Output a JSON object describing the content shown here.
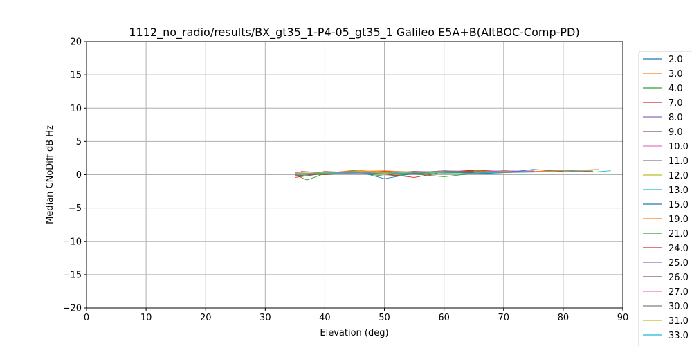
{
  "chart_data": {
    "type": "line",
    "title": "1112_no_radio/results/BX_gt35_1-P4-05_gt35_1 Galileo E5A+B(AltBOC-Comp-PD)",
    "xlabel": "Elevation (deg)",
    "ylabel": "Median CNoDiff dB Hz",
    "xlim": [
      0,
      90
    ],
    "ylim": [
      -20,
      20
    ],
    "xticks": [
      0,
      10,
      20,
      30,
      40,
      50,
      60,
      70,
      80,
      90
    ],
    "yticks": [
      -20,
      -15,
      -10,
      -5,
      0,
      5,
      10,
      15,
      20
    ],
    "x_tick_labels": [
      "0",
      "10",
      "20",
      "30",
      "40",
      "50",
      "60",
      "70",
      "80",
      "90"
    ],
    "y_tick_labels": [
      "−20",
      "−15",
      "−10",
      "−5",
      "0",
      "5",
      "10",
      "15",
      "20"
    ],
    "grid": true,
    "legend_position": "outside-right",
    "series": [
      {
        "name": "2.0",
        "color": "#1f77b4",
        "x": [
          35,
          40,
          45,
          50,
          55,
          60,
          65,
          70,
          75,
          80,
          85
        ],
        "y": [
          0.3,
          0.1,
          0.4,
          0.2,
          0.3,
          0.5,
          0.4,
          0.6,
          0.5,
          0.6,
          0.5
        ]
      },
      {
        "name": "3.0",
        "color": "#ff7f0e",
        "x": [
          35,
          40,
          45,
          50,
          55,
          60,
          65,
          70,
          75,
          80,
          85
        ],
        "y": [
          0.1,
          0.3,
          0.5,
          0.6,
          0.4,
          0.3,
          0.6,
          0.4,
          0.5,
          0.7,
          0.6
        ]
      },
      {
        "name": "4.0",
        "color": "#2ca02c",
        "x": [
          35,
          37,
          40,
          45,
          50,
          55,
          60,
          65,
          70
        ],
        "y": [
          0.0,
          -0.8,
          0.2,
          0.3,
          -0.2,
          0.1,
          -0.3,
          0.2,
          0.3
        ]
      },
      {
        "name": "7.0",
        "color": "#d62728",
        "x": [
          35,
          40,
          45,
          50,
          55,
          60,
          65,
          70
        ],
        "y": [
          -0.4,
          0.2,
          0.5,
          0.1,
          -0.4,
          0.4,
          0.7,
          0.5
        ]
      },
      {
        "name": "8.0",
        "color": "#9467bd",
        "x": [
          35,
          40,
          45,
          50,
          55,
          60,
          65,
          70,
          75
        ],
        "y": [
          0.2,
          0.3,
          0.1,
          0.4,
          0.2,
          0.6,
          0.5,
          0.4,
          0.6
        ]
      },
      {
        "name": "9.0",
        "color": "#8c564b",
        "x": [
          35,
          40,
          45,
          50,
          55,
          60,
          65
        ],
        "y": [
          0.1,
          0.0,
          0.3,
          0.5,
          0.2,
          0.4,
          0.6
        ]
      },
      {
        "name": "10.0",
        "color": "#e377c2",
        "x": [
          36,
          40,
          45,
          50,
          55,
          60,
          65,
          70,
          75,
          80
        ],
        "y": [
          0.2,
          0.4,
          0.2,
          0.3,
          0.5,
          0.3,
          0.4,
          0.6,
          0.5,
          0.4
        ]
      },
      {
        "name": "11.0",
        "color": "#7f7f7f",
        "x": [
          35,
          40,
          45,
          50,
          55,
          60,
          65,
          70
        ],
        "y": [
          -0.1,
          0.2,
          0.4,
          0.1,
          0.3,
          0.5,
          0.2,
          0.4
        ]
      },
      {
        "name": "12.0",
        "color": "#bcbd22",
        "x": [
          35,
          40,
          45,
          50,
          55,
          60,
          65,
          70,
          75
        ],
        "y": [
          0.0,
          0.1,
          0.6,
          0.3,
          0.5,
          0.2,
          0.3,
          0.5,
          0.4
        ]
      },
      {
        "name": "13.0",
        "color": "#17becf",
        "x": [
          38,
          40,
          45,
          50,
          55,
          60,
          65,
          70,
          75,
          80,
          85,
          88
        ],
        "y": [
          0.1,
          0.3,
          0.2,
          0.4,
          0.1,
          0.3,
          0.2,
          0.3,
          0.4,
          0.5,
          0.4,
          0.6
        ]
      },
      {
        "name": "15.0",
        "color": "#1f77b4",
        "x": [
          35,
          40,
          45,
          50,
          55,
          60,
          65,
          70,
          75,
          80
        ],
        "y": [
          -0.2,
          0.2,
          0.6,
          -0.6,
          0.2,
          0.5,
          0.1,
          0.3,
          0.8,
          0.5
        ]
      },
      {
        "name": "19.0",
        "color": "#ff7f0e",
        "x": [
          35,
          40,
          45,
          50,
          55,
          60,
          65,
          70,
          75,
          80,
          86
        ],
        "y": [
          0.3,
          0.2,
          0.7,
          0.4,
          0.3,
          0.6,
          0.4,
          0.3,
          0.5,
          0.6,
          0.8
        ]
      },
      {
        "name": "21.0",
        "color": "#2ca02c",
        "x": [
          35,
          40,
          45,
          50,
          55,
          60,
          65,
          70
        ],
        "y": [
          0.1,
          0.3,
          0.4,
          0.2,
          0.4,
          0.3,
          0.5,
          0.4
        ]
      },
      {
        "name": "24.0",
        "color": "#d62728",
        "x": [
          36,
          40,
          45,
          50,
          55,
          60,
          65
        ],
        "y": [
          0.5,
          0.3,
          0.2,
          0.5,
          0.3,
          0.4,
          0.6
        ]
      },
      {
        "name": "25.0",
        "color": "#9467bd",
        "x": [
          35,
          40,
          45,
          50,
          55,
          60,
          65,
          70,
          75
        ],
        "y": [
          0.0,
          0.4,
          0.3,
          0.1,
          0.4,
          0.5,
          0.3,
          0.6,
          0.4
        ]
      },
      {
        "name": "26.0",
        "color": "#8c564b",
        "x": [
          38,
          40,
          45,
          50,
          55,
          60,
          65
        ],
        "y": [
          0.2,
          0.5,
          0.3,
          0.2,
          0.5,
          0.4,
          0.3
        ]
      },
      {
        "name": "27.0",
        "color": "#e377c2",
        "x": [
          35,
          40,
          45,
          50,
          55,
          60
        ],
        "y": [
          0.3,
          0.1,
          0.2,
          0.4,
          0.3,
          0.5
        ]
      },
      {
        "name": "30.0",
        "color": "#7f7f7f",
        "x": [
          40,
          45,
          50,
          55,
          60,
          65,
          70,
          75
        ],
        "y": [
          0.2,
          0.4,
          0.1,
          0.3,
          0.6,
          0.4,
          0.3,
          0.5
        ]
      },
      {
        "name": "31.0",
        "color": "#bcbd22",
        "x": [
          35,
          40,
          45,
          50,
          55,
          60
        ],
        "y": [
          0.2,
          0.3,
          0.5,
          0.2,
          0.4,
          0.3
        ]
      },
      {
        "name": "33.0",
        "color": "#17becf",
        "x": [
          35,
          40,
          45,
          50,
          55,
          60,
          65,
          70
        ],
        "y": [
          0.1,
          0.2,
          0.3,
          0.4,
          0.1,
          0.3,
          0.2,
          0.4
        ]
      }
    ]
  }
}
